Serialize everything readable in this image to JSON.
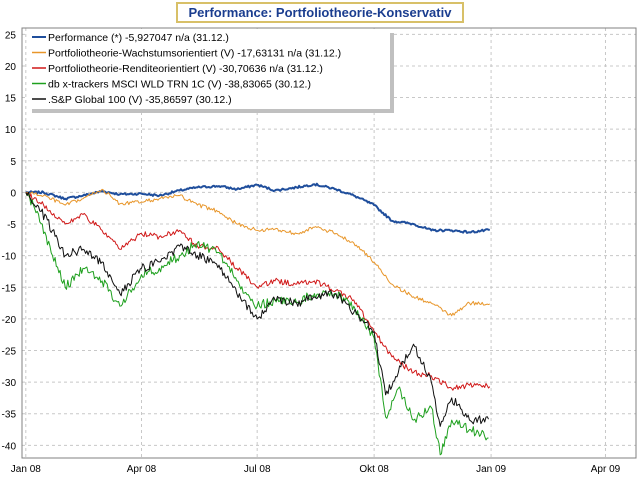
{
  "chart_data": {
    "type": "line",
    "title": "Performance: Portfoliotheorie-Konservativ",
    "xlabel": "",
    "ylabel": "",
    "ylim": [
      -42,
      26
    ],
    "yticks": [
      25,
      20,
      15,
      10,
      5,
      0,
      -5,
      -10,
      -15,
      -20,
      -25,
      -30,
      -35,
      -40
    ],
    "xlim": [
      "2007-12-29",
      "2009-04-25"
    ],
    "xticks": [
      {
        "label": "Jan 08",
        "date": "2008-01-01"
      },
      {
        "label": "Apr 08",
        "date": "2008-04-01"
      },
      {
        "label": "Jul 08",
        "date": "2008-07-01"
      },
      {
        "label": "Okt 08",
        "date": "2008-10-01"
      },
      {
        "label": "Jan 09",
        "date": "2009-01-01"
      },
      {
        "label": "Apr 09",
        "date": "2009-04-01"
      }
    ],
    "grid": true,
    "legend_position": "top-left",
    "series": [
      {
        "name": "Performance (*) -5,927047 n/a (31.12.)",
        "color": "#1f4e9c",
        "points": [
          [
            "2008-01-01",
            0
          ],
          [
            "2008-01-15",
            0
          ],
          [
            "2008-02-01",
            -1.0
          ],
          [
            "2008-02-15",
            -0.5
          ],
          [
            "2008-03-01",
            0.2
          ],
          [
            "2008-03-15",
            -0.3
          ],
          [
            "2008-04-01",
            -0.2
          ],
          [
            "2008-04-15",
            -0.5
          ],
          [
            "2008-05-01",
            0.3
          ],
          [
            "2008-05-15",
            0.8
          ],
          [
            "2008-06-01",
            1.0
          ],
          [
            "2008-06-15",
            0.5
          ],
          [
            "2008-07-01",
            1.2
          ],
          [
            "2008-07-15",
            0.3
          ],
          [
            "2008-08-01",
            0.8
          ],
          [
            "2008-08-15",
            1.3
          ],
          [
            "2008-09-01",
            0.5
          ],
          [
            "2008-09-15",
            -0.5
          ],
          [
            "2008-10-01",
            -2.0
          ],
          [
            "2008-10-15",
            -4.5
          ],
          [
            "2008-11-01",
            -5.0
          ],
          [
            "2008-11-15",
            -6.0
          ],
          [
            "2008-12-01",
            -6.0
          ],
          [
            "2008-12-15",
            -6.3
          ],
          [
            "2008-12-31",
            -5.93
          ]
        ]
      },
      {
        "name": "Portfoliotheorie-Wachstumsorientiert (V) -17,63131 n/a (31.12.)",
        "color": "#e8962a",
        "points": [
          [
            "2008-01-01",
            0
          ],
          [
            "2008-01-15",
            -0.5
          ],
          [
            "2008-02-01",
            -2.0
          ],
          [
            "2008-02-15",
            -1.0
          ],
          [
            "2008-03-01",
            0.5
          ],
          [
            "2008-03-15",
            -1.8
          ],
          [
            "2008-04-01",
            -1.5
          ],
          [
            "2008-04-15",
            -1.0
          ],
          [
            "2008-05-01",
            -0.5
          ],
          [
            "2008-05-15",
            -2.0
          ],
          [
            "2008-06-01",
            -3.0
          ],
          [
            "2008-06-15",
            -5.0
          ],
          [
            "2008-07-01",
            -6.0
          ],
          [
            "2008-07-15",
            -5.8
          ],
          [
            "2008-08-01",
            -6.5
          ],
          [
            "2008-08-15",
            -5.5
          ],
          [
            "2008-09-01",
            -6.5
          ],
          [
            "2008-09-15",
            -8.0
          ],
          [
            "2008-10-01",
            -11.0
          ],
          [
            "2008-10-15",
            -14.5
          ],
          [
            "2008-11-01",
            -16.5
          ],
          [
            "2008-11-15",
            -17.5
          ],
          [
            "2008-12-01",
            -19.5
          ],
          [
            "2008-12-15",
            -17.5
          ],
          [
            "2008-12-31",
            -17.63
          ]
        ]
      },
      {
        "name": "Portfoliotheorie-Renditeorientiert (V) -30,70636 n/a (31.12.)",
        "color": "#d01818",
        "points": [
          [
            "2008-01-01",
            0
          ],
          [
            "2008-01-15",
            -2.0
          ],
          [
            "2008-02-01",
            -5.0
          ],
          [
            "2008-02-15",
            -3.5
          ],
          [
            "2008-03-01",
            -6.0
          ],
          [
            "2008-03-15",
            -9.0
          ],
          [
            "2008-04-01",
            -6.5
          ],
          [
            "2008-04-15",
            -7.0
          ],
          [
            "2008-05-01",
            -6.0
          ],
          [
            "2008-05-15",
            -8.5
          ],
          [
            "2008-06-01",
            -9.0
          ],
          [
            "2008-06-15",
            -12.0
          ],
          [
            "2008-07-01",
            -15.0
          ],
          [
            "2008-07-15",
            -14.0
          ],
          [
            "2008-08-01",
            -14.5
          ],
          [
            "2008-08-15",
            -14.0
          ],
          [
            "2008-09-01",
            -15.5
          ],
          [
            "2008-09-15",
            -17.0
          ],
          [
            "2008-10-01",
            -22.0
          ],
          [
            "2008-10-15",
            -26.0
          ],
          [
            "2008-11-01",
            -28.5
          ],
          [
            "2008-11-15",
            -29.0
          ],
          [
            "2008-12-01",
            -31.0
          ],
          [
            "2008-12-15",
            -30.5
          ],
          [
            "2008-12-31",
            -30.71
          ]
        ]
      },
      {
        "name": "db x-trackers MSCI WLD TRN 1C (V) -38,83065 (30.12.)",
        "color": "#1ea01e",
        "points": [
          [
            "2008-01-01",
            0
          ],
          [
            "2008-01-10",
            -3.0
          ],
          [
            "2008-01-22",
            -10.0
          ],
          [
            "2008-02-01",
            -15.0
          ],
          [
            "2008-02-15",
            -12.0
          ],
          [
            "2008-03-01",
            -14.0
          ],
          [
            "2008-03-15",
            -18.0
          ],
          [
            "2008-04-01",
            -13.0
          ],
          [
            "2008-04-15",
            -12.0
          ],
          [
            "2008-05-01",
            -10.0
          ],
          [
            "2008-05-15",
            -8.0
          ],
          [
            "2008-06-01",
            -9.5
          ],
          [
            "2008-06-15",
            -14.0
          ],
          [
            "2008-07-01",
            -18.0
          ],
          [
            "2008-07-15",
            -17.0
          ],
          [
            "2008-08-01",
            -17.5
          ],
          [
            "2008-08-15",
            -16.0
          ],
          [
            "2008-09-01",
            -16.0
          ],
          [
            "2008-09-15",
            -18.0
          ],
          [
            "2008-10-01",
            -23.0
          ],
          [
            "2008-10-10",
            -35.5
          ],
          [
            "2008-10-20",
            -31.0
          ],
          [
            "2008-11-01",
            -36.0
          ],
          [
            "2008-11-15",
            -34.0
          ],
          [
            "2008-11-22",
            -41.5
          ],
          [
            "2008-12-01",
            -36.0
          ],
          [
            "2008-12-15",
            -37.5
          ],
          [
            "2008-12-30",
            -38.83
          ]
        ]
      },
      {
        "name": ".S&P Global 100 (V) -35,86597 (30.12.)",
        "color": "#101010",
        "points": [
          [
            "2008-01-01",
            0
          ],
          [
            "2008-01-10",
            -2.0
          ],
          [
            "2008-01-22",
            -6.0
          ],
          [
            "2008-02-01",
            -10.0
          ],
          [
            "2008-02-15",
            -9.0
          ],
          [
            "2008-03-01",
            -11.0
          ],
          [
            "2008-03-15",
            -16.0
          ],
          [
            "2008-04-01",
            -12.0
          ],
          [
            "2008-04-15",
            -11.0
          ],
          [
            "2008-05-01",
            -8.5
          ],
          [
            "2008-05-15",
            -10.0
          ],
          [
            "2008-06-01",
            -11.5
          ],
          [
            "2008-06-15",
            -16.0
          ],
          [
            "2008-07-01",
            -20.0
          ],
          [
            "2008-07-15",
            -17.0
          ],
          [
            "2008-08-01",
            -17.5
          ],
          [
            "2008-08-15",
            -16.5
          ],
          [
            "2008-09-01",
            -16.0
          ],
          [
            "2008-09-15",
            -19.0
          ],
          [
            "2008-10-01",
            -22.0
          ],
          [
            "2008-10-10",
            -32.0
          ],
          [
            "2008-10-20",
            -28.5
          ],
          [
            "2008-11-01",
            -24.0
          ],
          [
            "2008-11-15",
            -30.0
          ],
          [
            "2008-11-22",
            -37.0
          ],
          [
            "2008-12-01",
            -32.5
          ],
          [
            "2008-12-15",
            -36.0
          ],
          [
            "2008-12-30",
            -35.87
          ]
        ]
      }
    ]
  }
}
